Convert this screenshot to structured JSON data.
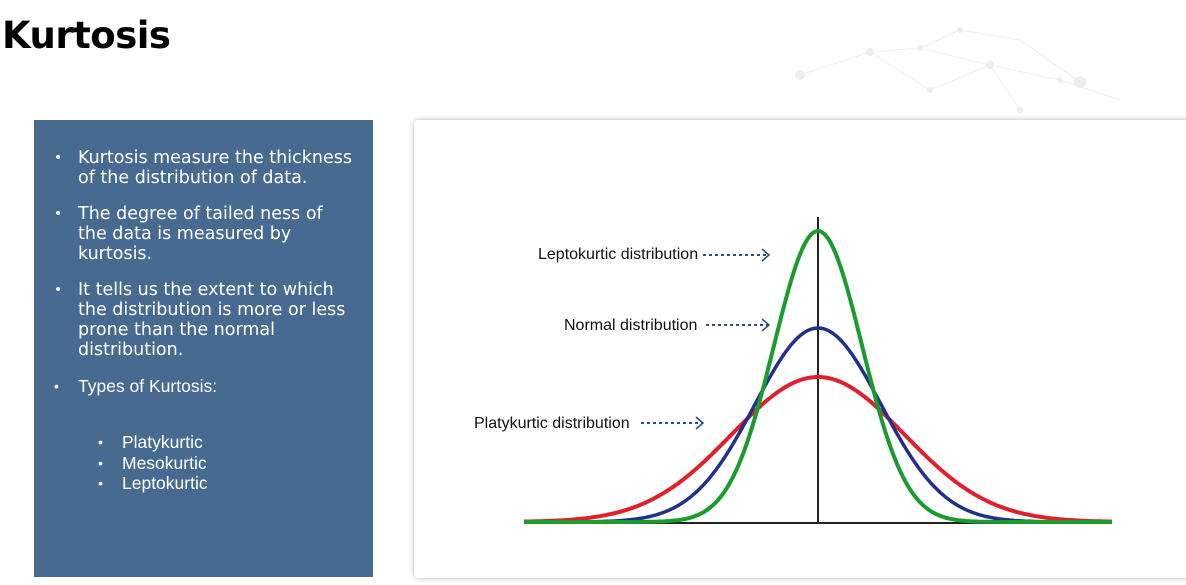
{
  "title": "Kurtosis",
  "panel": {
    "bullets": [
      "Kurtosis measure the thickness of the distribution of data.",
      "The degree of tailed ness of the data is measured by kurtosis.",
      "It tells us the extent to which the distribution is more or less prone than the normal distribution."
    ],
    "types_heading": "Types of Kurtosis:",
    "types": [
      "Platykurtic",
      "Mesokurtic",
      "Leptokurtic"
    ]
  },
  "diagram": {
    "labels": {
      "leptokurtic": "Leptokurtic distribution",
      "normal": "Normal distribution",
      "platykurtic": "Platykurtic distribution"
    },
    "colors": {
      "leptokurtic": "#1a9b2e",
      "normal": "#232f8c",
      "platykurtic": "#e0202a",
      "axis": "#222222",
      "arrow": "#2c4e7a",
      "panel": "#476a91"
    }
  }
}
